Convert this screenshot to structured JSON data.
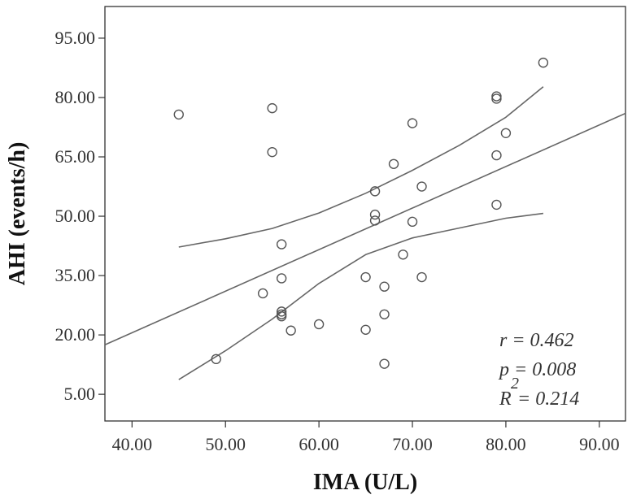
{
  "chart_data": {
    "type": "scatter",
    "xlabel": "IMA (U/L)",
    "ylabel": "AHI (events/h)",
    "xlim": [
      37.1,
      92.8
    ],
    "ylim": [
      -1.75,
      103.0
    ],
    "x_ticks": [
      "40.00",
      "50.00",
      "60.00",
      "70.00",
      "80.00",
      "90.00"
    ],
    "y_ticks": [
      "5.00",
      "20.00",
      "35.00",
      "50.00",
      "65.00",
      "80.00",
      "95.00"
    ],
    "grid": false,
    "legend": "none",
    "colors": {
      "points": "#555555",
      "lines": "#666666",
      "axis": "#333333"
    },
    "points": [
      {
        "x": 45,
        "y": 75.7
      },
      {
        "x": 49,
        "y": 13.9
      },
      {
        "x": 54,
        "y": 30.5
      },
      {
        "x": 55,
        "y": 77.3
      },
      {
        "x": 55,
        "y": 66.2
      },
      {
        "x": 56,
        "y": 42.9
      },
      {
        "x": 56,
        "y": 34.3
      },
      {
        "x": 56,
        "y": 25.9
      },
      {
        "x": 56,
        "y": 25.2
      },
      {
        "x": 56,
        "y": 24.7
      },
      {
        "x": 57,
        "y": 21.1
      },
      {
        "x": 60,
        "y": 22.7
      },
      {
        "x": 65,
        "y": 34.6
      },
      {
        "x": 65,
        "y": 21.3
      },
      {
        "x": 66,
        "y": 56.3
      },
      {
        "x": 66,
        "y": 50.4
      },
      {
        "x": 66,
        "y": 48.9
      },
      {
        "x": 67,
        "y": 32.2
      },
      {
        "x": 67,
        "y": 25.2
      },
      {
        "x": 67,
        "y": 12.7
      },
      {
        "x": 68,
        "y": 63.2
      },
      {
        "x": 69,
        "y": 40.3
      },
      {
        "x": 70,
        "y": 73.5
      },
      {
        "x": 70,
        "y": 48.6
      },
      {
        "x": 71,
        "y": 57.5
      },
      {
        "x": 71,
        "y": 34.6
      },
      {
        "x": 79,
        "y": 80.3
      },
      {
        "x": 79,
        "y": 79.7
      },
      {
        "x": 79,
        "y": 65.4
      },
      {
        "x": 79,
        "y": 52.9
      },
      {
        "x": 80,
        "y": 71.0
      },
      {
        "x": 84,
        "y": 88.8
      }
    ],
    "fit_line": {
      "x": [
        37.1,
        92.8
      ],
      "y": [
        17.5,
        76.0
      ]
    },
    "confidence_upper": {
      "x": [
        45,
        50,
        55,
        60,
        65,
        70,
        75,
        80,
        84
      ],
      "y": [
        42.2,
        44.3,
        46.9,
        50.8,
        55.8,
        61.6,
        67.9,
        75.0,
        82.7
      ]
    },
    "confidence_lower": {
      "x": [
        45,
        50,
        55,
        60,
        65,
        70,
        75,
        80,
        84
      ],
      "y": [
        8.7,
        16.0,
        24.0,
        33.0,
        40.3,
        44.5,
        47.0,
        49.5,
        50.7
      ]
    },
    "annotations": [
      "r = 0.462",
      "p = 0.008",
      "R",
      "2",
      "= 0.214"
    ]
  }
}
